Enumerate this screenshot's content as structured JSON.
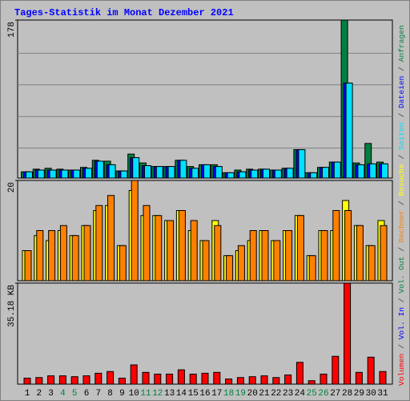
{
  "title": "Tages-Statistik im Monat Dezember 2021",
  "legend_separator": "/",
  "chart_data": [
    {
      "type": "bar",
      "series": [
        {
          "name": "Anfragen",
          "color": "#008040",
          "values": [
            7,
            10,
            11,
            10,
            9,
            12,
            20,
            19,
            8,
            27,
            17,
            13,
            13,
            20,
            13,
            15,
            15,
            6,
            9,
            10,
            10,
            9,
            11,
            32,
            6,
            12,
            18,
            178,
            17,
            39,
            18
          ]
        },
        {
          "name": "Dateien",
          "color": "#0000ff",
          "values": [
            7,
            9,
            9,
            9,
            9,
            11,
            19,
            15,
            8,
            23,
            14,
            13,
            13,
            20,
            11,
            15,
            13,
            6,
            7,
            9,
            10,
            9,
            11,
            32,
            6,
            12,
            18,
            107,
            15,
            16,
            16
          ]
        },
        {
          "name": "Seiten",
          "color": "#00e0ff",
          "values": [
            7,
            9,
            9,
            9,
            9,
            11,
            19,
            15,
            8,
            23,
            14,
            13,
            13,
            20,
            11,
            15,
            13,
            6,
            7,
            9,
            10,
            9,
            11,
            32,
            6,
            12,
            18,
            107,
            15,
            16,
            16
          ]
        }
      ],
      "ylim": [
        0,
        178
      ],
      "yticks": [
        178
      ]
    },
    {
      "type": "bar",
      "series": [
        {
          "name": "Besuche",
          "color": "#ffff00",
          "values": [
            6,
            9,
            8,
            10,
            9,
            11,
            14,
            15,
            7,
            18,
            13,
            13,
            12,
            14,
            10,
            8,
            12,
            5,
            6,
            8,
            10,
            8,
            10,
            13,
            5,
            10,
            10,
            16,
            11,
            7,
            12
          ]
        },
        {
          "name": "Rechner",
          "color": "#ff8000",
          "values": [
            6,
            10,
            10,
            11,
            9,
            11,
            15,
            17,
            7,
            20,
            15,
            13,
            12,
            14,
            12,
            8,
            11,
            5,
            7,
            10,
            10,
            8,
            10,
            13,
            5,
            10,
            14,
            14,
            11,
            7,
            11
          ]
        }
      ],
      "ylim": [
        0,
        20
      ],
      "yticks": [
        20
      ]
    },
    {
      "type": "bar",
      "categories": [
        "1",
        "2",
        "3",
        "4",
        "5",
        "6",
        "7",
        "8",
        "9",
        "10",
        "11",
        "12",
        "13",
        "14",
        "15",
        "16",
        "17",
        "18",
        "19",
        "20",
        "21",
        "22",
        "23",
        "24",
        "25",
        "26",
        "27",
        "28",
        "29",
        "30",
        "31"
      ],
      "category_colors": [
        "#000000",
        "#000000",
        "#000000",
        "#008040",
        "#008040",
        "#000000",
        "#000000",
        "#000000",
        "#000000",
        "#000000",
        "#008040",
        "#008040",
        "#000000",
        "#000000",
        "#000000",
        "#000000",
        "#000000",
        "#008040",
        "#008040",
        "#000000",
        "#000000",
        "#000000",
        "#000000",
        "#000000",
        "#008040",
        "#008040",
        "#000000",
        "#000000",
        "#000000",
        "#000000",
        "#000000"
      ],
      "series": [
        {
          "name": "Volumen",
          "color": "#ff0000",
          "values": [
            2.1,
            2.3,
            2.9,
            2.9,
            2.6,
            2.9,
            3.8,
            4.4,
            2.1,
            6.7,
            4.1,
            3.5,
            3.5,
            5.0,
            3.5,
            3.8,
            4.1,
            1.8,
            2.3,
            2.6,
            2.9,
            2.3,
            3.2,
            7.6,
            1.2,
            3.5,
            9.7,
            35.18,
            4.1,
            9.4,
            4.4
          ]
        }
      ],
      "legend_extra": [
        {
          "name": "Vol. In",
          "color": "#0000ff"
        },
        {
          "name": "Vol. Out",
          "color": "#008040"
        }
      ],
      "ylim": [
        0,
        35.18
      ],
      "yticks": [
        {
          "value": 35.18,
          "label": "35.18 KB"
        }
      ]
    }
  ]
}
